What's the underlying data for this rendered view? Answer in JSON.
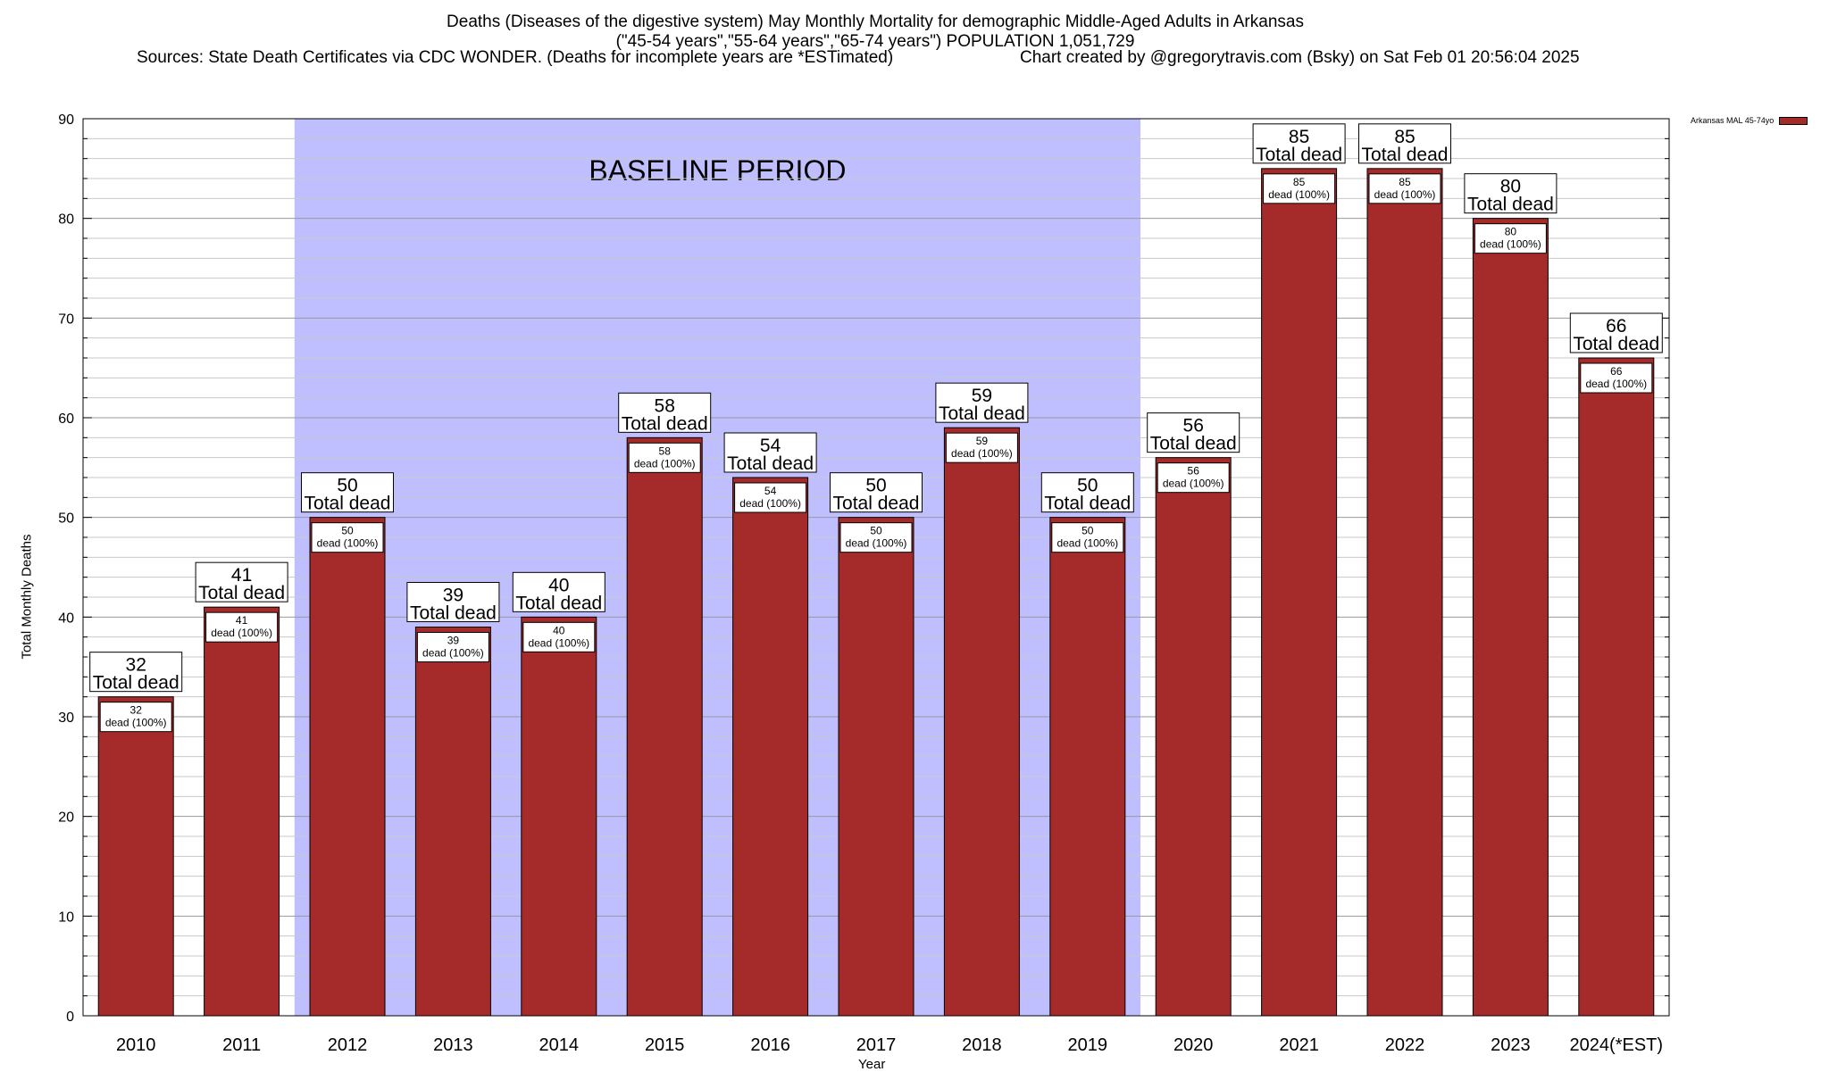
{
  "header": {
    "title": "Deaths (Diseases of the digestive system) May Monthly Mortality for demographic Middle-Aged Adults in Arkansas",
    "subtitle": "(\"45-54 years\",\"55-64 years\",\"65-74 years\") POPULATION 1,051,729",
    "sources": "Sources: State Death Certificates via CDC WONDER. (Deaths for incomplete years are *ESTimated)",
    "credit": "Chart created by @gregorytravis.com (Bsky) on Sat Feb 01 20:56:04 2025"
  },
  "chart_data": {
    "type": "bar",
    "categories": [
      "2010",
      "2011",
      "2012",
      "2013",
      "2014",
      "2015",
      "2016",
      "2017",
      "2018",
      "2019",
      "2020",
      "2021",
      "2022",
      "2023",
      "2024(*EST)"
    ],
    "series": [
      {
        "name": "Arkansas MAL 45-74yo",
        "values": [
          32,
          41,
          50,
          39,
          40,
          58,
          54,
          50,
          59,
          50,
          56,
          85,
          85,
          80,
          66
        ],
        "color": "#a52a2a"
      }
    ],
    "ylabel": "Total Monthly Deaths",
    "xlabel": "Year",
    "ylim": [
      0,
      90
    ],
    "yticks": [
      0,
      10,
      20,
      30,
      40,
      50,
      60,
      70,
      80,
      90
    ],
    "grid": true,
    "legend_position": "top-right",
    "baseline_period": {
      "label": "BASELINE PERIOD",
      "from": "2012",
      "to": "2019",
      "color": "#bfbfff"
    },
    "annotation_total_suffix": "Total dead",
    "annotation_inner_suffix": "dead (100%)"
  }
}
